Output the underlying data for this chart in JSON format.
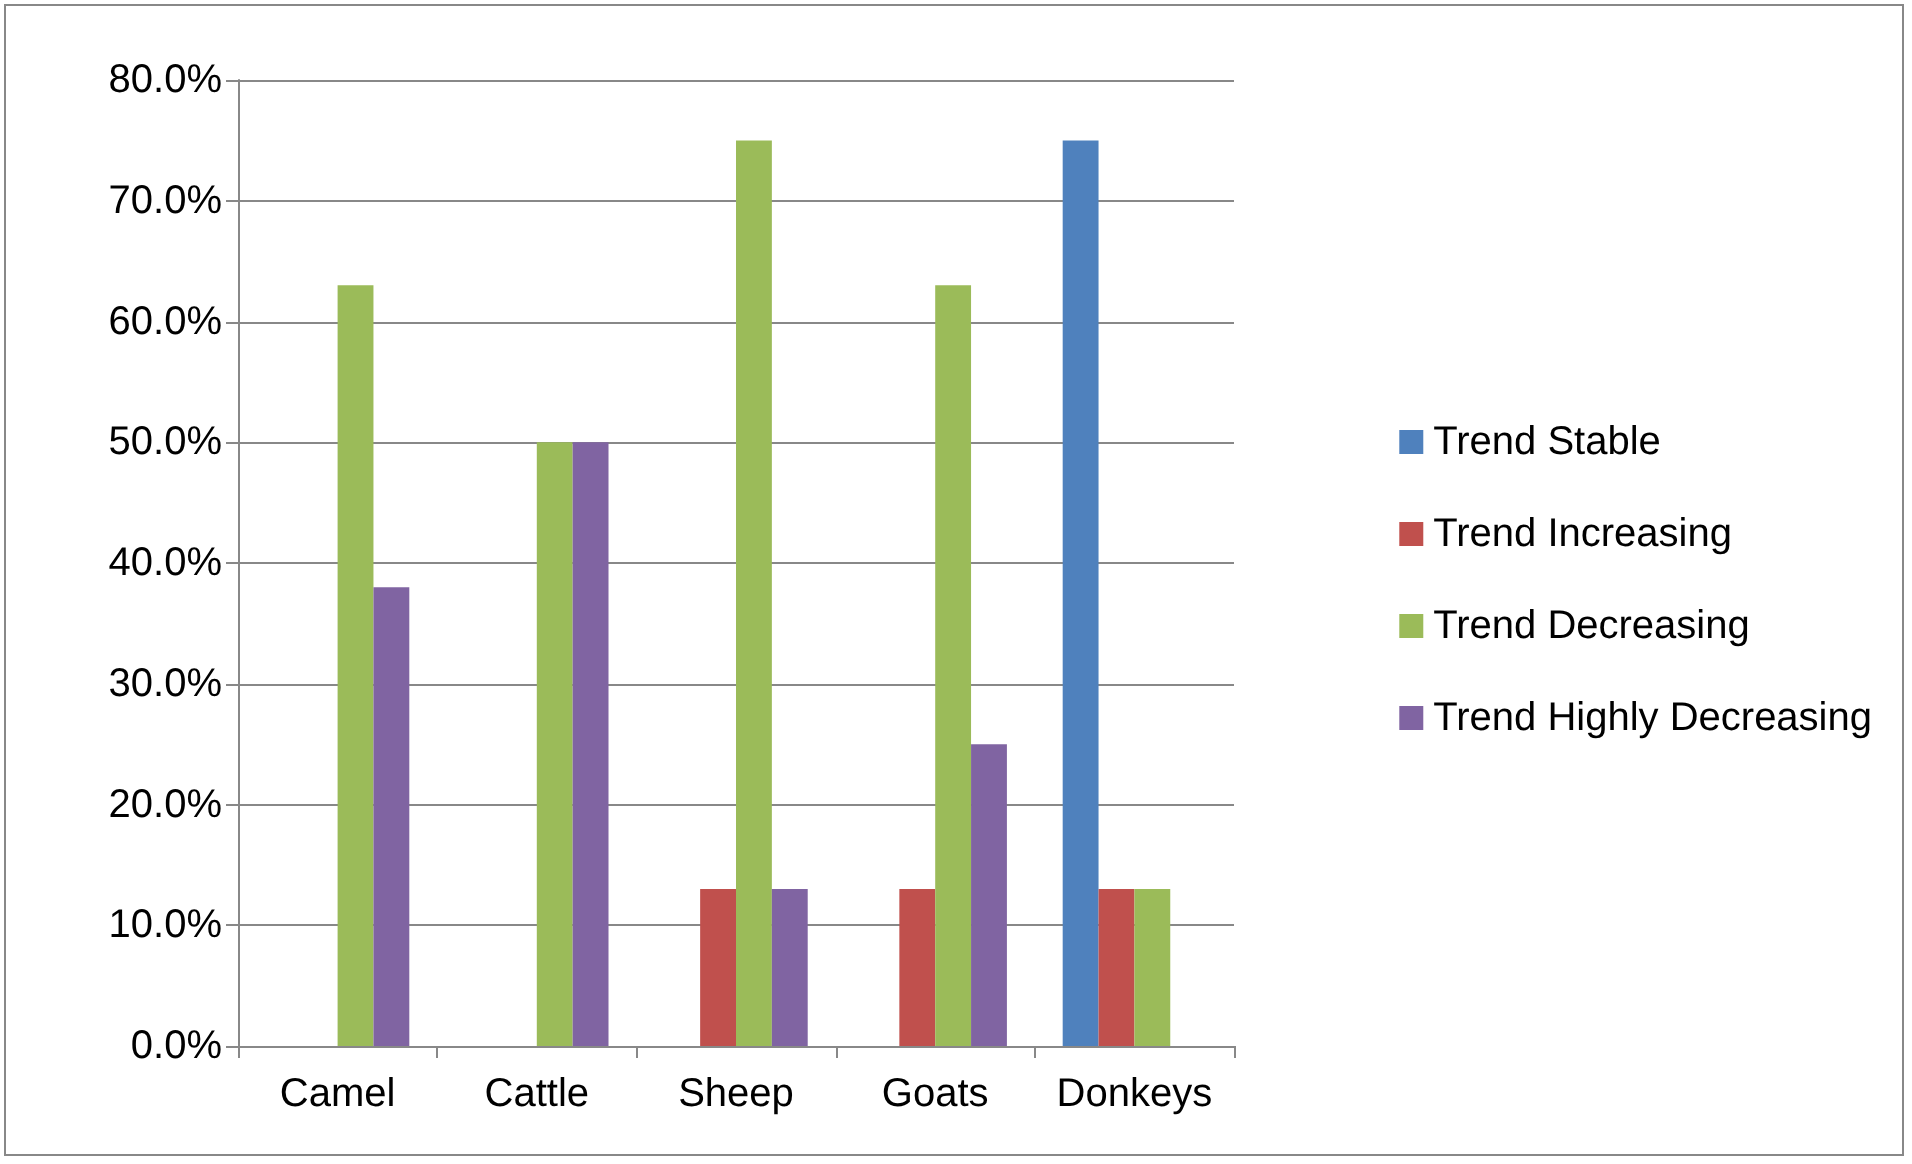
{
  "chart_data": {
    "type": "bar",
    "categories": [
      "Camel",
      "Cattle",
      "Sheep",
      "Goats",
      "Donkeys"
    ],
    "series": [
      {
        "name": "Trend Stable",
        "color": "#4f81bd",
        "values": [
          0,
          0,
          0,
          0,
          75
        ]
      },
      {
        "name": "Trend Increasing",
        "color": "#c0504d",
        "values": [
          0,
          0,
          13,
          13,
          13
        ]
      },
      {
        "name": "Trend Decreasing",
        "color": "#9bbb59",
        "values": [
          63,
          50,
          75,
          63,
          13
        ]
      },
      {
        "name": "Trend Highly Decreasing",
        "color": "#8064a2",
        "values": [
          38,
          50,
          13,
          25,
          0
        ]
      }
    ],
    "ylim": [
      0,
      80
    ],
    "yticks": [
      {
        "value": 0,
        "label": "0.0%"
      },
      {
        "value": 10,
        "label": "10.0%"
      },
      {
        "value": 20,
        "label": "20.0%"
      },
      {
        "value": 30,
        "label": "30.0%"
      },
      {
        "value": 40,
        "label": "40.0%"
      },
      {
        "value": 50,
        "label": "50.0%"
      },
      {
        "value": 60,
        "label": "60.0%"
      },
      {
        "value": 70,
        "label": "70.0%"
      },
      {
        "value": 80,
        "label": "80.0%"
      }
    ],
    "grid": "y",
    "legend": "right"
  }
}
